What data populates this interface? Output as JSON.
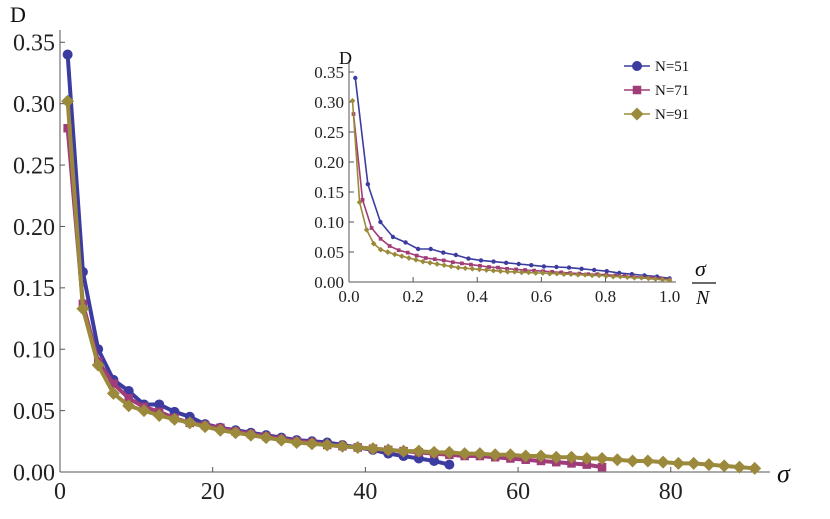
{
  "chart_data": [
    {
      "type": "line",
      "ylabel": "D",
      "xlabel": "σ",
      "xlim": [
        0,
        93
      ],
      "ylim": [
        0,
        0.36
      ],
      "xticks": [
        "0",
        "20",
        "40",
        "60",
        "80"
      ],
      "yticks": [
        "0.00",
        "0.05",
        "0.10",
        "0.15",
        "0.20",
        "0.25",
        "0.30",
        "0.35"
      ],
      "series": [
        {
          "name": "N=51",
          "color": "#3c3ca0",
          "marker": "circle",
          "x": [
            1,
            3,
            5,
            7,
            9,
            11,
            13,
            15,
            17,
            19,
            21,
            23,
            25,
            27,
            29,
            31,
            33,
            35,
            37,
            39,
            41,
            43,
            45,
            47,
            49,
            51
          ],
          "y": [
            0.34,
            0.163,
            0.1,
            0.075,
            0.066,
            0.055,
            0.055,
            0.049,
            0.045,
            0.039,
            0.036,
            0.034,
            0.032,
            0.03,
            0.028,
            0.026,
            0.025,
            0.024,
            0.022,
            0.02,
            0.018,
            0.015,
            0.013,
            0.011,
            0.009,
            0.006
          ]
        },
        {
          "name": "N=71",
          "color": "#a03c78",
          "marker": "square",
          "x": [
            1,
            3,
            5,
            7,
            9,
            11,
            13,
            15,
            17,
            19,
            21,
            23,
            25,
            27,
            29,
            31,
            33,
            35,
            37,
            39,
            41,
            43,
            45,
            47,
            49,
            51,
            53,
            55,
            57,
            59,
            61,
            63,
            65,
            67,
            69,
            71
          ],
          "y": [
            0.28,
            0.137,
            0.09,
            0.072,
            0.06,
            0.053,
            0.049,
            0.044,
            0.04,
            0.038,
            0.036,
            0.033,
            0.031,
            0.029,
            0.027,
            0.025,
            0.024,
            0.022,
            0.021,
            0.02,
            0.019,
            0.018,
            0.017,
            0.016,
            0.015,
            0.014,
            0.013,
            0.013,
            0.012,
            0.011,
            0.01,
            0.009,
            0.008,
            0.007,
            0.006,
            0.004
          ]
        },
        {
          "name": "N=91",
          "color": "#9b8a3c",
          "marker": "diamond",
          "x": [
            1,
            3,
            5,
            7,
            9,
            11,
            13,
            15,
            17,
            19,
            21,
            23,
            25,
            27,
            29,
            31,
            33,
            35,
            37,
            39,
            41,
            43,
            45,
            47,
            49,
            51,
            53,
            55,
            57,
            59,
            61,
            63,
            65,
            67,
            69,
            71,
            73,
            75,
            77,
            79,
            81,
            83,
            85,
            87,
            89,
            91
          ],
          "y": [
            0.302,
            0.133,
            0.087,
            0.064,
            0.054,
            0.05,
            0.046,
            0.043,
            0.04,
            0.037,
            0.034,
            0.032,
            0.03,
            0.028,
            0.026,
            0.024,
            0.023,
            0.022,
            0.021,
            0.02,
            0.019,
            0.018,
            0.017,
            0.017,
            0.016,
            0.016,
            0.015,
            0.015,
            0.014,
            0.014,
            0.013,
            0.013,
            0.012,
            0.012,
            0.011,
            0.011,
            0.01,
            0.009,
            0.009,
            0.008,
            0.007,
            0.007,
            0.006,
            0.005,
            0.004,
            0.003
          ]
        }
      ]
    },
    {
      "type": "line",
      "ylabel": "D",
      "xlabel_num": "σ",
      "xlabel_den": "N",
      "xlim": [
        0,
        1.02
      ],
      "ylim": [
        0,
        0.37
      ],
      "xticks": [
        "0.0",
        "0.2",
        "0.4",
        "0.6",
        "0.8",
        "1.0"
      ],
      "yticks": [
        "0.00",
        "0.05",
        "0.10",
        "0.15",
        "0.20",
        "0.25",
        "0.30",
        "0.35"
      ],
      "legend_position": "top-right",
      "legend": [
        "N=51",
        "N=71",
        "N=91"
      ]
    }
  ]
}
